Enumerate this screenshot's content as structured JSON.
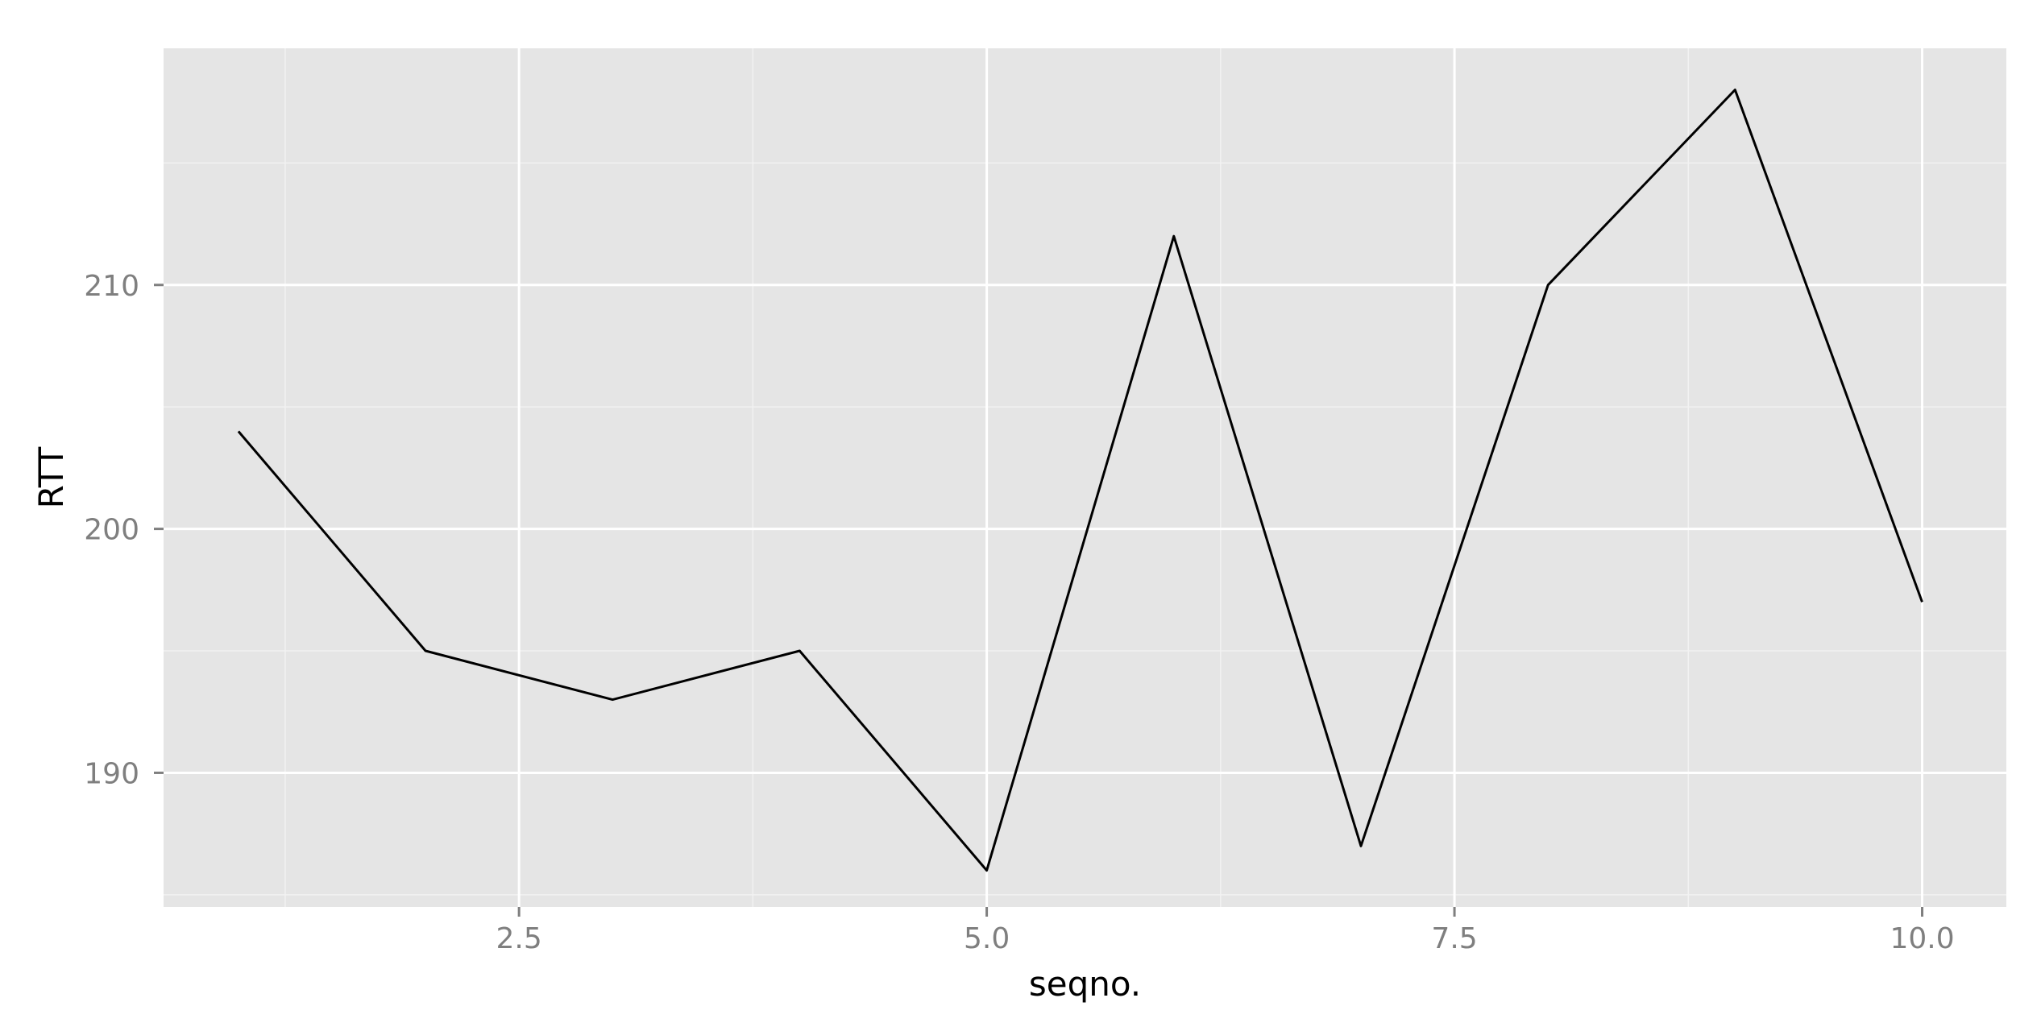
{
  "chart_data": {
    "type": "line",
    "title": "",
    "xlabel": "seqno.",
    "ylabel": "RTT",
    "xlim": [
      0.6,
      10.45
    ],
    "ylim": [
      184.5,
      219.7
    ],
    "x_ticks": [
      2.5,
      5.0,
      7.5,
      10.0
    ],
    "x_tick_labels": [
      "2.5",
      "5.0",
      "7.5",
      "10.0"
    ],
    "y_ticks": [
      190,
      200,
      210
    ],
    "y_tick_labels": [
      "190",
      "200",
      "210"
    ],
    "grid": true,
    "legend": "none",
    "series": [
      {
        "x": [
          1,
          2,
          3,
          4,
          5,
          6,
          7,
          8,
          9,
          10
        ],
        "y": [
          204,
          195,
          193,
          195,
          186,
          212,
          187,
          210,
          218,
          197
        ]
      }
    ],
    "colors": {
      "panel_background": "#e5e5e5",
      "grid_major": "#ffffff",
      "grid_minor": "#f2f2f2",
      "line": "#000000",
      "tick_text": "#7f7f7f",
      "title_text": "#000000"
    }
  }
}
